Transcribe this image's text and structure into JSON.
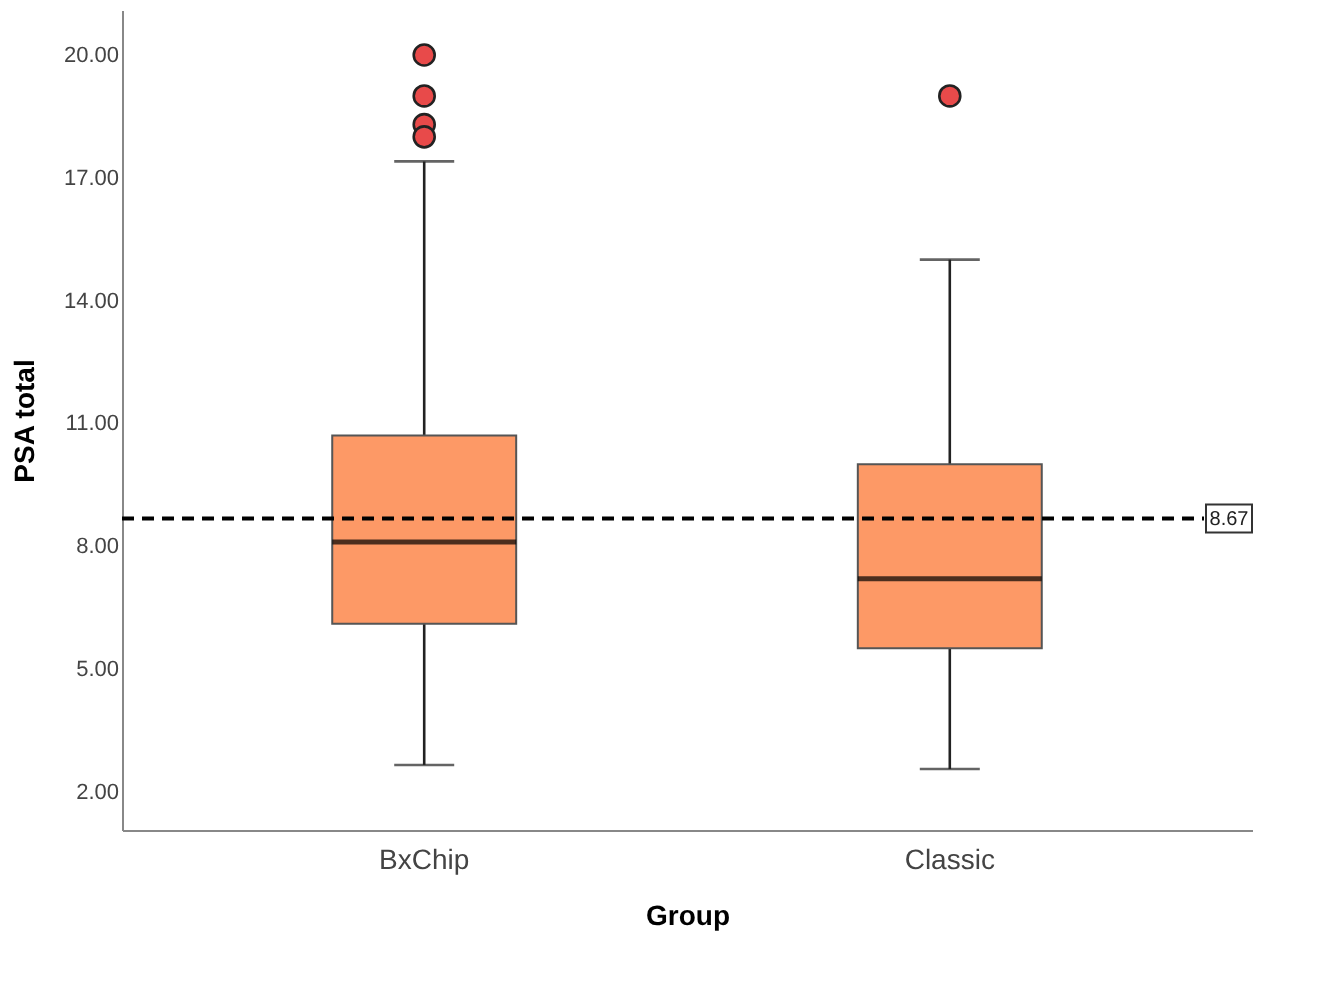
{
  "chart_data": {
    "type": "box",
    "xlabel": "Group",
    "ylabel": "PSA total",
    "categories": [
      "BxChip",
      "Classic"
    ],
    "boxes": [
      {
        "low": 2.65,
        "q1": 6.1,
        "median": 8.1,
        "q3": 10.7,
        "high": 17.4,
        "outliers": [
          20,
          19,
          18.3,
          18
        ]
      },
      {
        "low": 2.55,
        "q1": 5.5,
        "median": 7.2,
        "q3": 10.0,
        "high": 15,
        "outliers": [
          19
        ]
      }
    ],
    "color": "#fd9966",
    "ylim": [
      1.06,
      21.1
    ],
    "yticks": [
      {
        "value": 2,
        "label": "2.00"
      },
      {
        "value": 5,
        "label": "5.00"
      },
      {
        "value": 8,
        "label": "8.00"
      },
      {
        "value": 11,
        "label": "11.00"
      },
      {
        "value": 14,
        "label": "14.00"
      },
      {
        "value": 17,
        "label": "17.00"
      },
      {
        "value": 20,
        "label": "20.00"
      }
    ],
    "ref_lines": [
      {
        "axis": "y",
        "value": 8.67,
        "label": "8.67",
        "line_style": "dashed",
        "color": "#000000"
      }
    ],
    "grid": false
  }
}
